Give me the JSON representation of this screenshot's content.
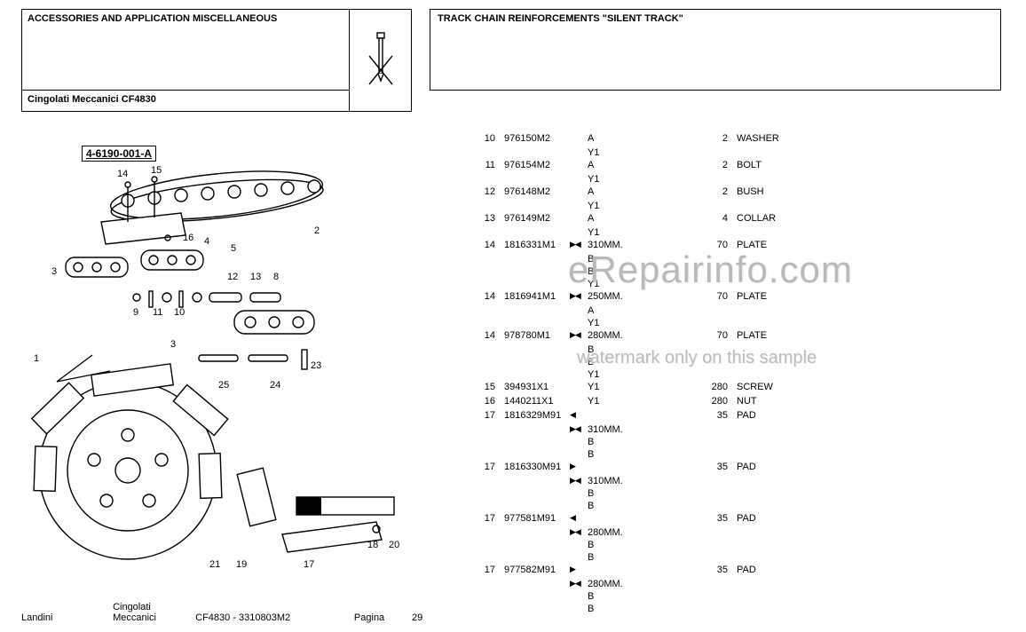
{
  "header": {
    "section_title": "ACCESSORIES AND APPLICATION MISCELLANEOUS",
    "model": "Cingolati Meccanici CF4830",
    "assembly_title": "TRACK CHAIN REINFORCEMENTS \"SILENT TRACK\""
  },
  "diagram": {
    "ref_label": "4-6190-001-A",
    "callouts": [
      "1",
      "2",
      "3",
      "4",
      "5",
      "8",
      "9",
      "10",
      "11",
      "12",
      "13",
      "14",
      "15",
      "16",
      "17",
      "18",
      "19",
      "20",
      "21",
      "23",
      "24",
      "25"
    ]
  },
  "parts": [
    {
      "ref": "10",
      "part": "976150M2",
      "sym": "",
      "note": "A",
      "sub": [
        "Y1"
      ],
      "qty": "2",
      "desc": "WASHER"
    },
    {
      "ref": "11",
      "part": "976154M2",
      "sym": "",
      "note": "A",
      "sub": [
        "Y1"
      ],
      "qty": "2",
      "desc": "BOLT"
    },
    {
      "ref": "12",
      "part": "976148M2",
      "sym": "",
      "note": "A",
      "sub": [
        "Y1"
      ],
      "qty": "2",
      "desc": "BUSH"
    },
    {
      "ref": "13",
      "part": "976149M2",
      "sym": "",
      "note": "A",
      "sub": [
        "Y1"
      ],
      "qty": "4",
      "desc": "COLLAR"
    },
    {
      "ref": "14",
      "part": "1816331M1",
      "sym": "▶◀",
      "note": "310MM.",
      "sub": [
        "B",
        "B",
        "Y1"
      ],
      "qty": "70",
      "desc": "PLATE"
    },
    {
      "ref": "14",
      "part": "1816941M1",
      "sym": "▶◀",
      "note": "250MM.",
      "sub": [
        "A",
        "Y1"
      ],
      "qty": "70",
      "desc": "PLATE"
    },
    {
      "ref": "14",
      "part": "978780M1",
      "sym": "▶◀",
      "note": "280MM.",
      "sub": [
        "B",
        "B",
        "Y1"
      ],
      "qty": "70",
      "desc": "PLATE"
    },
    {
      "ref": "15",
      "part": "394931X1",
      "sym": "",
      "note": "Y1",
      "sub": [],
      "qty": "280",
      "desc": "SCREW"
    },
    {
      "ref": "16",
      "part": "1440211X1",
      "sym": "",
      "note": "Y1",
      "sub": [],
      "qty": "280",
      "desc": "NUT"
    },
    {
      "ref": "17",
      "part": "1816329M91",
      "sym": "◀",
      "note": "",
      "sub": [
        "▶◀ 310MM.",
        "B",
        "B"
      ],
      "qty": "35",
      "desc": "PAD"
    },
    {
      "ref": "17",
      "part": "1816330M91",
      "sym": "▶",
      "note": "",
      "sub": [
        "▶◀ 310MM.",
        "B",
        "B"
      ],
      "qty": "35",
      "desc": "PAD"
    },
    {
      "ref": "17",
      "part": "977581M91",
      "sym": "◀",
      "note": "",
      "sub": [
        "▶◀ 280MM.",
        "B",
        "B"
      ],
      "qty": "35",
      "desc": "PAD"
    },
    {
      "ref": "17",
      "part": "977582M91",
      "sym": "▶",
      "note": "",
      "sub": [
        "▶◀ 280MM.",
        "B",
        "B"
      ],
      "qty": "35",
      "desc": "PAD"
    }
  ],
  "watermark": {
    "line1": "eRepairinfo.com",
    "line2": "watermark only on this sample"
  },
  "footer": {
    "mfr": "Landini",
    "series1": "Cingolati",
    "series2": "Meccanici",
    "doc": "CF4830 - 3310803M2",
    "page_label": "Pagina",
    "page_num": "29"
  },
  "colors": {
    "text": "#000000",
    "bg": "#ffffff",
    "watermark": "#bcbcbc"
  }
}
